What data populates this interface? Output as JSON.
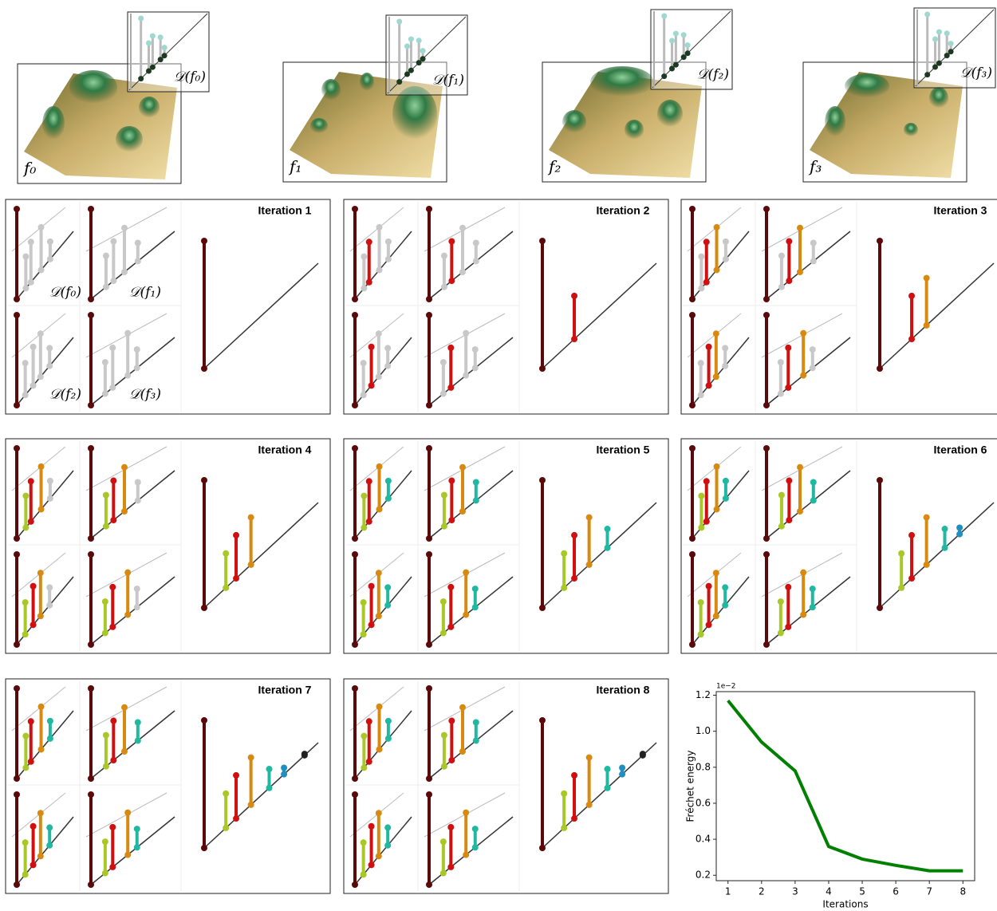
{
  "figure": {
    "terrains": [
      {
        "label": "f₀",
        "diagram_label": "𝒟(f₀)"
      },
      {
        "label": "f₁",
        "diagram_label": "𝒟(f₁)"
      },
      {
        "label": "f₂",
        "diagram_label": "𝒟(f₂)"
      },
      {
        "label": "f₃",
        "diagram_label": "𝒟(f₃)"
      }
    ],
    "iterations": [
      "Iteration 1",
      "Iteration 2",
      "Iteration 3",
      "Iteration 4",
      "Iteration 5",
      "Iteration 6",
      "Iteration 7",
      "Iteration 8"
    ]
  },
  "chart_data": {
    "type": "line",
    "x": [
      1,
      2,
      3,
      4,
      5,
      6,
      7,
      8
    ],
    "values": [
      1.17,
      0.94,
      0.78,
      0.36,
      0.29,
      0.255,
      0.225,
      0.225
    ],
    "color": "#008000",
    "xlim": [
      0.65,
      8.35
    ],
    "ylim": [
      0.17,
      1.22
    ],
    "xticks": [
      1,
      2,
      3,
      4,
      5,
      6,
      7,
      8
    ],
    "yticks": [
      0.2,
      0.4,
      0.6,
      0.8,
      {
        "value": 1,
        "label": "1.0"
      },
      1.2
    ],
    "offset_label": "1e−2",
    "xlabel": "Iterations",
    "ylabel": "Fréchet energy"
  }
}
